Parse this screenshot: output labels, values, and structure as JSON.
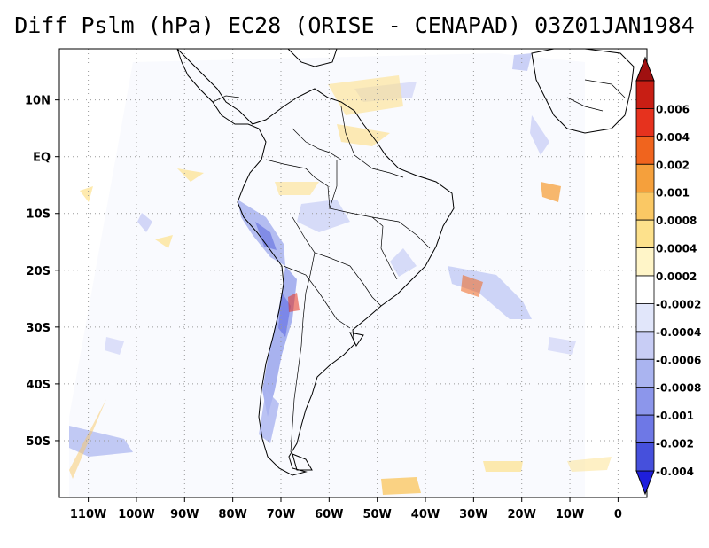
{
  "title": "Diff Pslm (hPa) EC28 (ORISE - CENAPAD) 03Z01JAN1984",
  "map": {
    "lon_range": [
      -116,
      6
    ],
    "lat_range": [
      -60,
      19
    ],
    "lon_ticks": [
      {
        "value": -110,
        "label": "110W"
      },
      {
        "value": -100,
        "label": "100W"
      },
      {
        "value": -90,
        "label": "90W"
      },
      {
        "value": -80,
        "label": "80W"
      },
      {
        "value": -70,
        "label": "70W"
      },
      {
        "value": -60,
        "label": "60W"
      },
      {
        "value": -50,
        "label": "50W"
      },
      {
        "value": -40,
        "label": "40W"
      },
      {
        "value": -30,
        "label": "30W"
      },
      {
        "value": -20,
        "label": "20W"
      },
      {
        "value": -10,
        "label": "10W"
      },
      {
        "value": 0,
        "label": "0"
      }
    ],
    "lat_ticks": [
      {
        "value": 10,
        "label": "10N"
      },
      {
        "value": 0,
        "label": "EQ"
      },
      {
        "value": -10,
        "label": "10S"
      },
      {
        "value": -20,
        "label": "20S"
      },
      {
        "value": -30,
        "label": "30S"
      },
      {
        "value": -40,
        "label": "40S"
      },
      {
        "value": -50,
        "label": "50S"
      }
    ],
    "grid": true
  },
  "colorbar": {
    "levels": [
      {
        "label": "0.006",
        "color": "#c81e14"
      },
      {
        "label": "0.004",
        "color": "#e6321e"
      },
      {
        "label": "0.002",
        "color": "#f0641e"
      },
      {
        "label": "0.001",
        "color": "#f5a03c"
      },
      {
        "label": "0.0008",
        "color": "#fac864"
      },
      {
        "label": "0.0004",
        "color": "#fde18c"
      },
      {
        "label": "0.0002",
        "color": "#fff5c8"
      },
      {
        "label": "-0.0002",
        "color": "#ffffff"
      },
      {
        "label": "-0.0004",
        "color": "#e1e6fa"
      },
      {
        "label": "-0.0006",
        "color": "#c8cdf5"
      },
      {
        "label": "-0.0008",
        "color": "#aab4f0"
      },
      {
        "label": "-0.001",
        "color": "#8c96eb"
      },
      {
        "label": "-0.002",
        "color": "#6e78e6"
      },
      {
        "label": "-0.004",
        "color": "#4650dc"
      }
    ],
    "top_arrow_color": "#a01010",
    "bottom_arrow_color": "#1e1edc"
  }
}
